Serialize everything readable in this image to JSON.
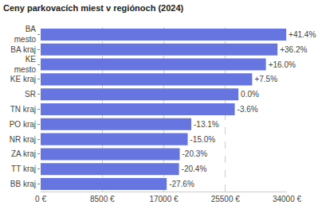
{
  "chart_data": {
    "type": "bar",
    "orientation": "horizontal",
    "title": "Ceny parkovacích miest v regiónoch (2024)",
    "categories": [
      "BA mesto",
      "BA kraj",
      "KE mesto",
      "KE kraj",
      "SR",
      "TN kraj",
      "PO kraj",
      "NR kraj",
      "ZA kraj",
      "TT kraj",
      "BB kraj"
    ],
    "values": [
      33900,
      32700,
      31100,
      29200,
      27300,
      26800,
      20800,
      20300,
      19200,
      19100,
      17400
    ],
    "annotations": [
      "+41.4%",
      "+36.2%",
      "+16.0%",
      "+7.5%",
      "0.0%",
      "-3.6%",
      "-13.1%",
      "-15.0%",
      "-20.3%",
      "-20.4%",
      "-27.6%"
    ],
    "color": "#6675e0",
    "xlim": [
      0,
      34000
    ],
    "xticks": [
      {
        "value": 0,
        "label": "0 €"
      },
      {
        "value": 8500,
        "label": "8500 €"
      },
      {
        "value": 17000,
        "label": "17000 €"
      },
      {
        "value": 25500,
        "label": "25500 €"
      },
      {
        "value": 34000,
        "label": "34000 €"
      }
    ],
    "grid": true
  }
}
